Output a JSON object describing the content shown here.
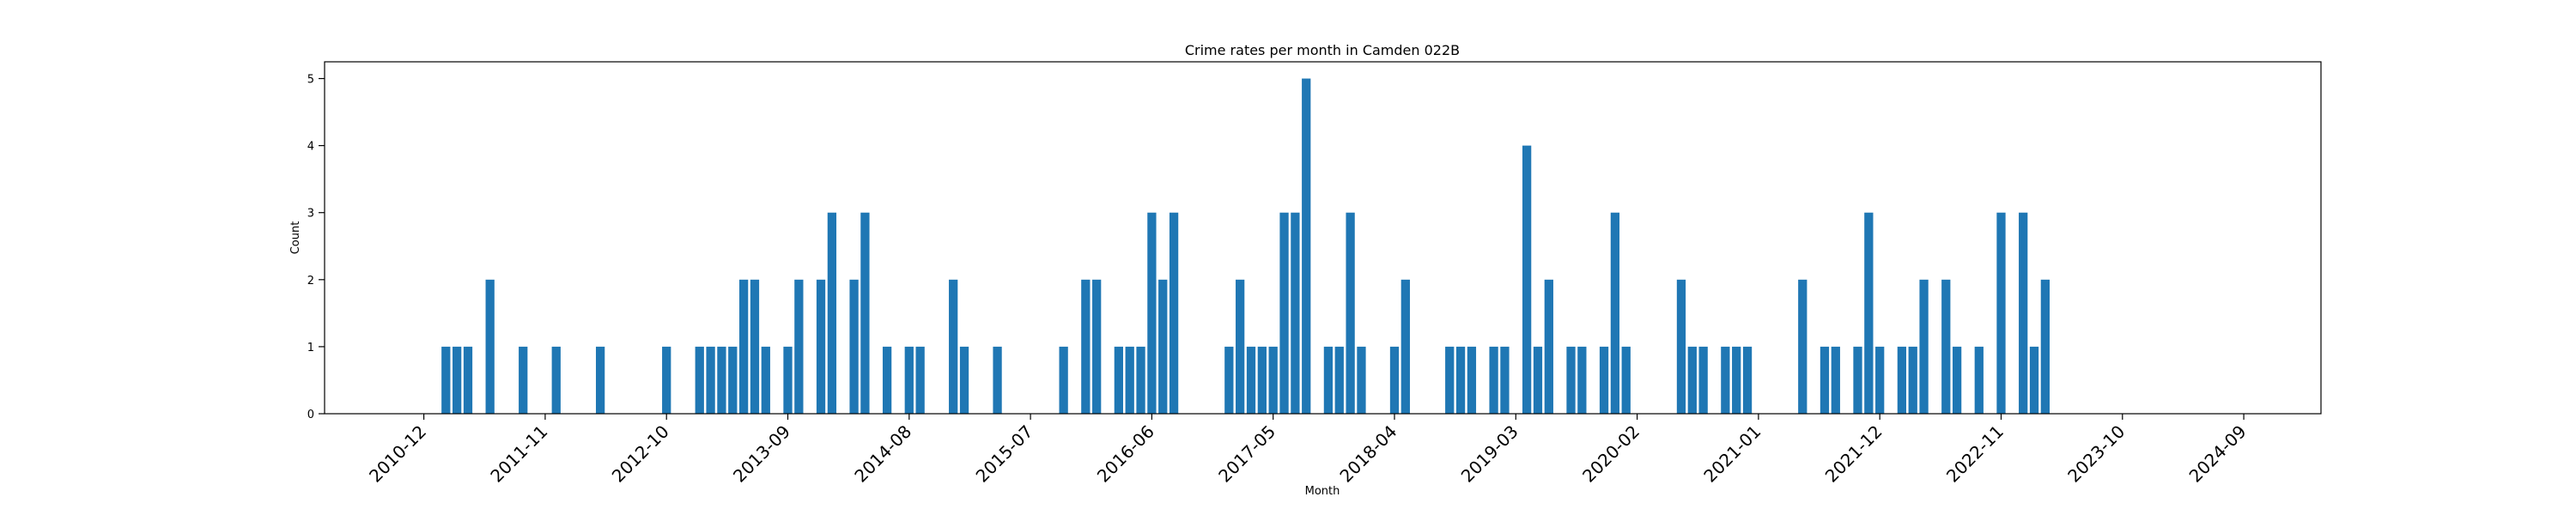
{
  "chart_data": {
    "type": "bar",
    "title": "Crime rates per month in Camden 022B",
    "xlabel": "Month",
    "ylabel": "Count",
    "ylim": [
      0,
      5.25
    ],
    "yticks": [
      0,
      1,
      2,
      3,
      4,
      5
    ],
    "xticks": [
      "2010-12",
      "2011-11",
      "2012-10",
      "2013-09",
      "2014-08",
      "2015-07",
      "2016-06",
      "2017-05",
      "2018-04",
      "2019-03",
      "2020-02",
      "2021-01",
      "2021-12",
      "2022-11",
      "2023-10",
      "2024-09"
    ],
    "xlim": [
      "2010-03",
      "2025-04"
    ],
    "bar_color": "#1f77b4",
    "grid": false,
    "categories": [
      "2011-02",
      "2011-03",
      "2011-04",
      "2011-06",
      "2011-09",
      "2011-12",
      "2012-04",
      "2012-10",
      "2013-01",
      "2013-02",
      "2013-03",
      "2013-04",
      "2013-05",
      "2013-06",
      "2013-07",
      "2013-09",
      "2013-10",
      "2013-12",
      "2014-01",
      "2014-03",
      "2014-04",
      "2014-06",
      "2014-08",
      "2014-09",
      "2014-12",
      "2015-01",
      "2015-04",
      "2015-10",
      "2015-12",
      "2016-01",
      "2016-03",
      "2016-04",
      "2016-05",
      "2016-06",
      "2016-07",
      "2016-08",
      "2017-01",
      "2017-02",
      "2017-03",
      "2017-04",
      "2017-05",
      "2017-06",
      "2017-07",
      "2017-08",
      "2017-10",
      "2017-11",
      "2017-12",
      "2018-01",
      "2018-04",
      "2018-05",
      "2018-09",
      "2018-10",
      "2018-11",
      "2019-01",
      "2019-02",
      "2019-04",
      "2019-05",
      "2019-06",
      "2019-08",
      "2019-09",
      "2019-11",
      "2019-12",
      "2020-01",
      "2020-06",
      "2020-07",
      "2020-08",
      "2020-10",
      "2020-11",
      "2020-12",
      "2021-05",
      "2021-07",
      "2021-08",
      "2021-10",
      "2021-11",
      "2021-12",
      "2022-02",
      "2022-03",
      "2022-04",
      "2022-06",
      "2022-07",
      "2022-09",
      "2022-11",
      "2023-01",
      "2023-02",
      "2023-03"
    ],
    "values": [
      1,
      1,
      1,
      2,
      1,
      1,
      1,
      1,
      1,
      1,
      1,
      1,
      2,
      2,
      1,
      1,
      2,
      2,
      3,
      2,
      3,
      1,
      1,
      1,
      2,
      1,
      1,
      1,
      2,
      2,
      1,
      1,
      1,
      3,
      2,
      3,
      1,
      2,
      1,
      1,
      1,
      3,
      3,
      5,
      1,
      1,
      3,
      1,
      1,
      2,
      1,
      1,
      1,
      1,
      1,
      4,
      1,
      2,
      1,
      1,
      1,
      3,
      1,
      2,
      1,
      1,
      1,
      1,
      1,
      2,
      1,
      1,
      1,
      3,
      1,
      1,
      1,
      2,
      2,
      1,
      1,
      3,
      3,
      1,
      2
    ]
  }
}
